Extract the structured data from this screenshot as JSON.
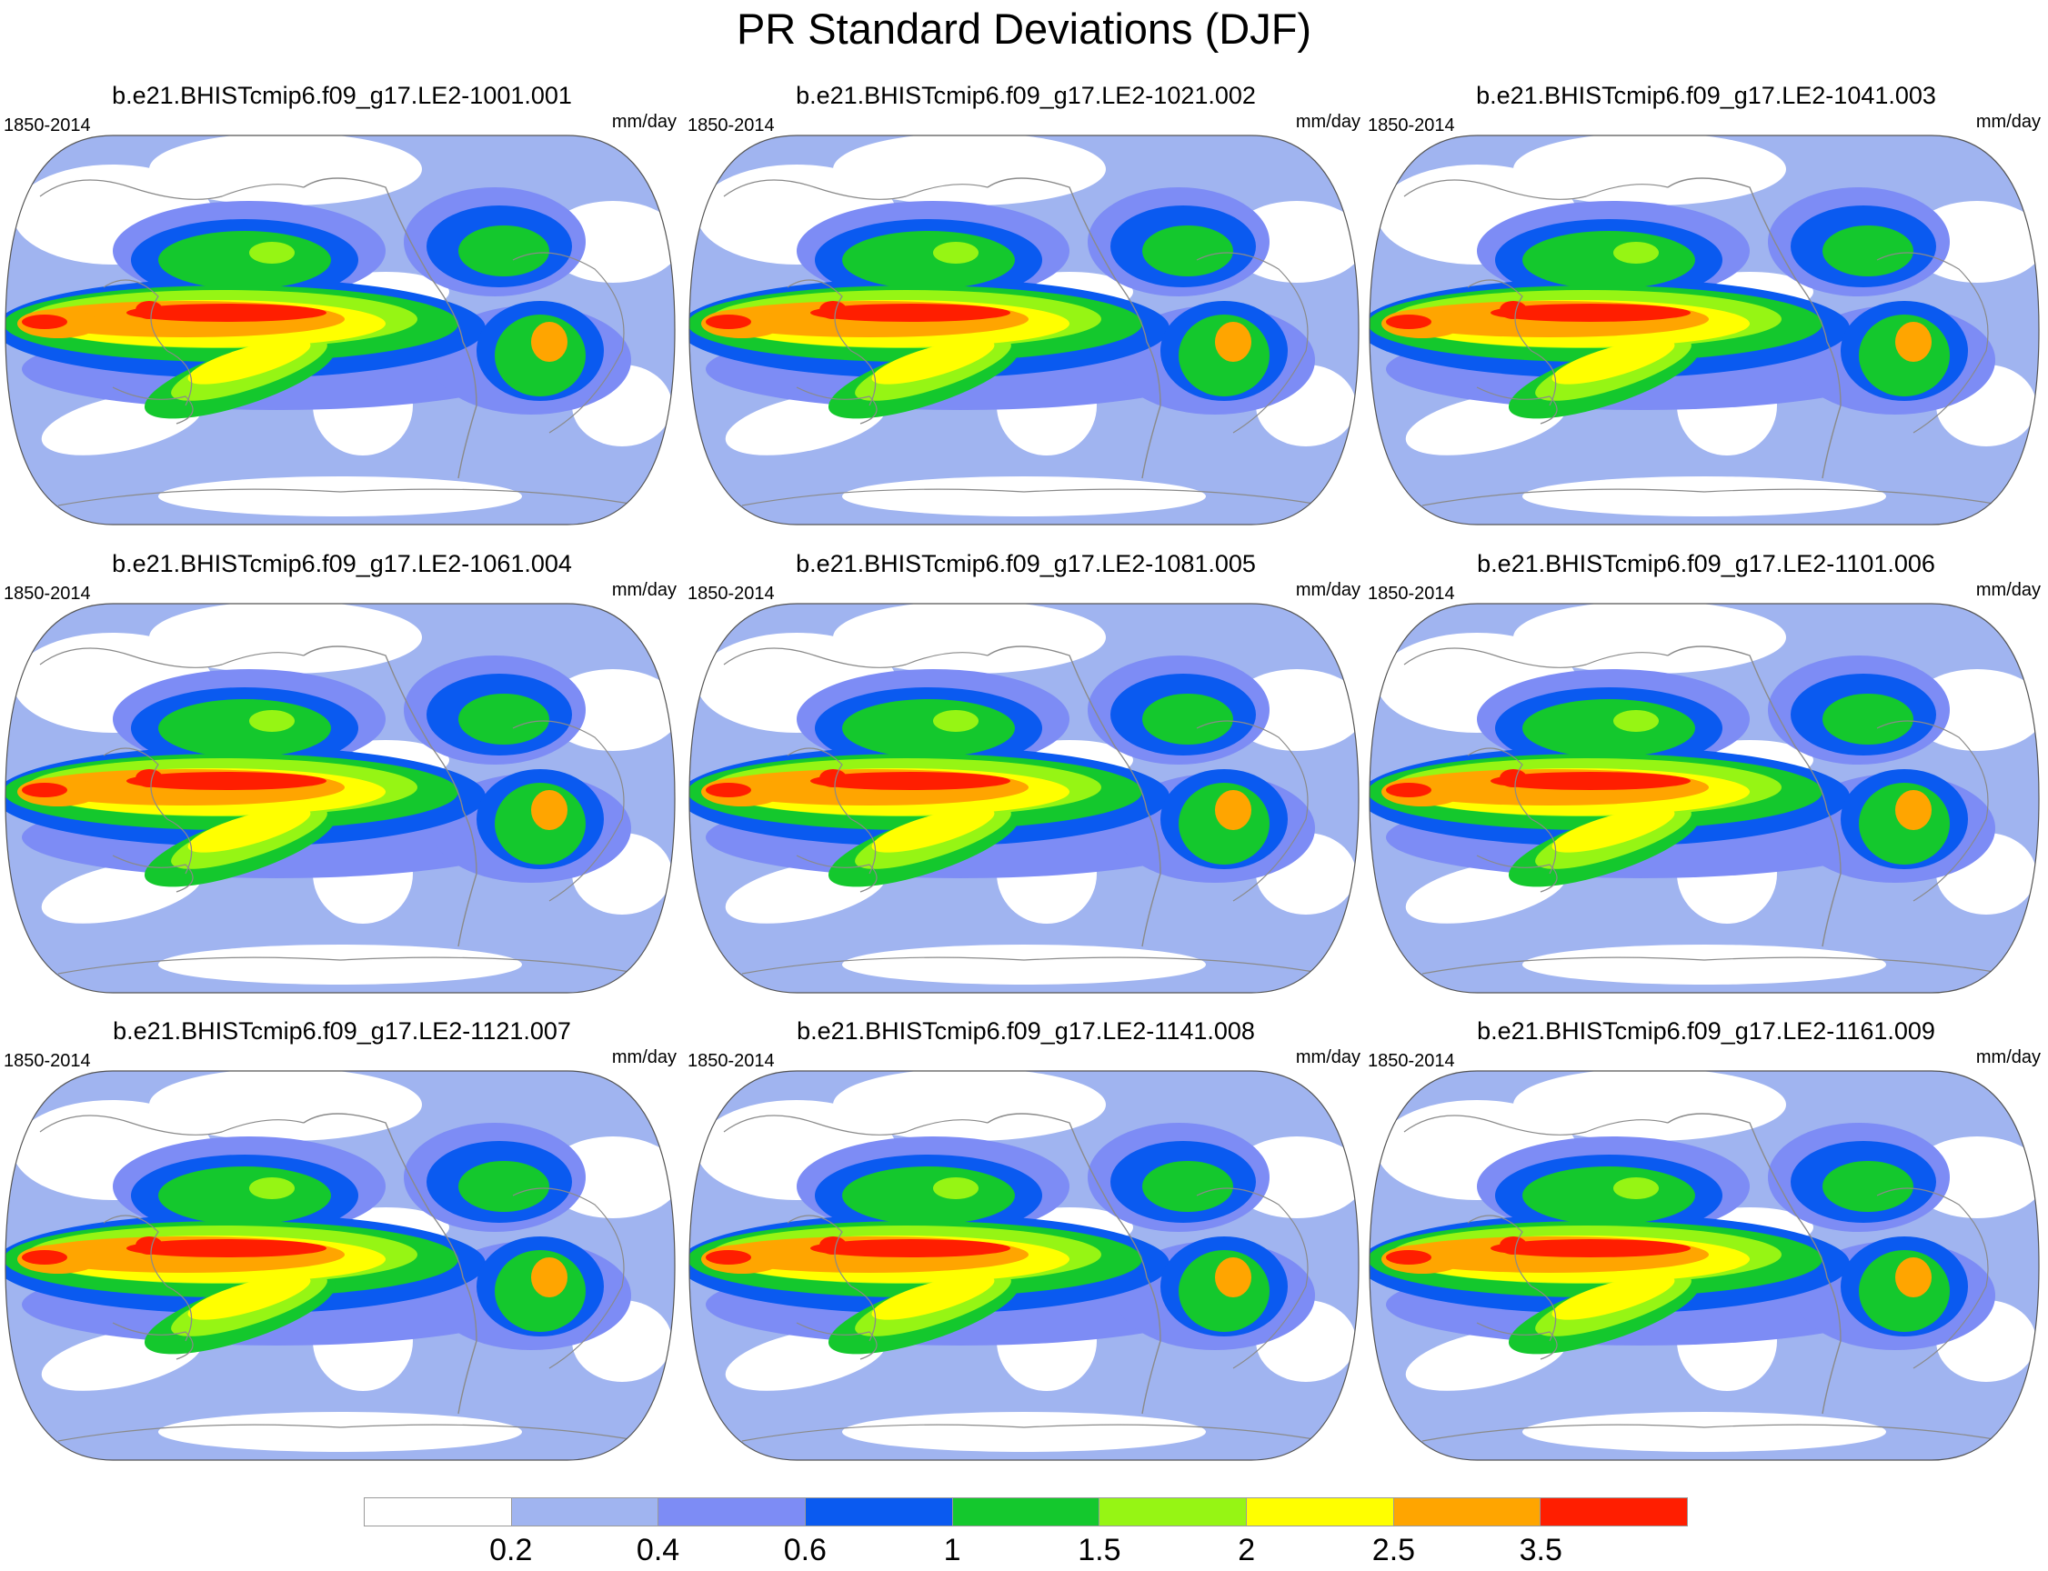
{
  "figure": {
    "title": "PR Standard Deviations (DJF)"
  },
  "panels": [
    {
      "title": "b.e21.BHISTcmip6.f09_g17.LE2-1001.001",
      "left": "1850-2014",
      "right": "mm/day"
    },
    {
      "title": "b.e21.BHISTcmip6.f09_g17.LE2-1021.002",
      "left": "1850-2014",
      "right": "mm/day"
    },
    {
      "title": "b.e21.BHISTcmip6.f09_g17.LE2-1041.003",
      "left": "1850-2014",
      "right": "mm/day"
    },
    {
      "title": "b.e21.BHISTcmip6.f09_g17.LE2-1061.004",
      "left": "1850-2014",
      "right": "mm/day"
    },
    {
      "title": "b.e21.BHISTcmip6.f09_g17.LE2-1081.005",
      "left": "1850-2014",
      "right": "mm/day"
    },
    {
      "title": "b.e21.BHISTcmip6.f09_g17.LE2-1101.006",
      "left": "1850-2014",
      "right": "mm/day"
    },
    {
      "title": "b.e21.BHISTcmip6.f09_g17.LE2-1121.007",
      "left": "1850-2014",
      "right": "mm/day"
    },
    {
      "title": "b.e21.BHISTcmip6.f09_g17.LE2-1141.008",
      "left": "1850-2014",
      "right": "mm/day"
    },
    {
      "title": "b.e21.BHISTcmip6.f09_g17.LE2-1161.009",
      "left": "1850-2014",
      "right": "mm/day"
    }
  ],
  "colorbar": {
    "colors": [
      "#ffffff",
      "#a0b4f0",
      "#7d8cf5",
      "#0a5af0",
      "#14c82d",
      "#96f514",
      "#ffff00",
      "#ffa500",
      "#ff1e00"
    ],
    "labels": [
      "0.2",
      "0.4",
      "0.6",
      "1",
      "1.5",
      "2",
      "2.5",
      "3.5"
    ]
  },
  "map_style": {
    "projection": "robinson-like (Pacific-centered)",
    "coastline_color": "#8a8a8a",
    "border_color": "#555555"
  }
}
